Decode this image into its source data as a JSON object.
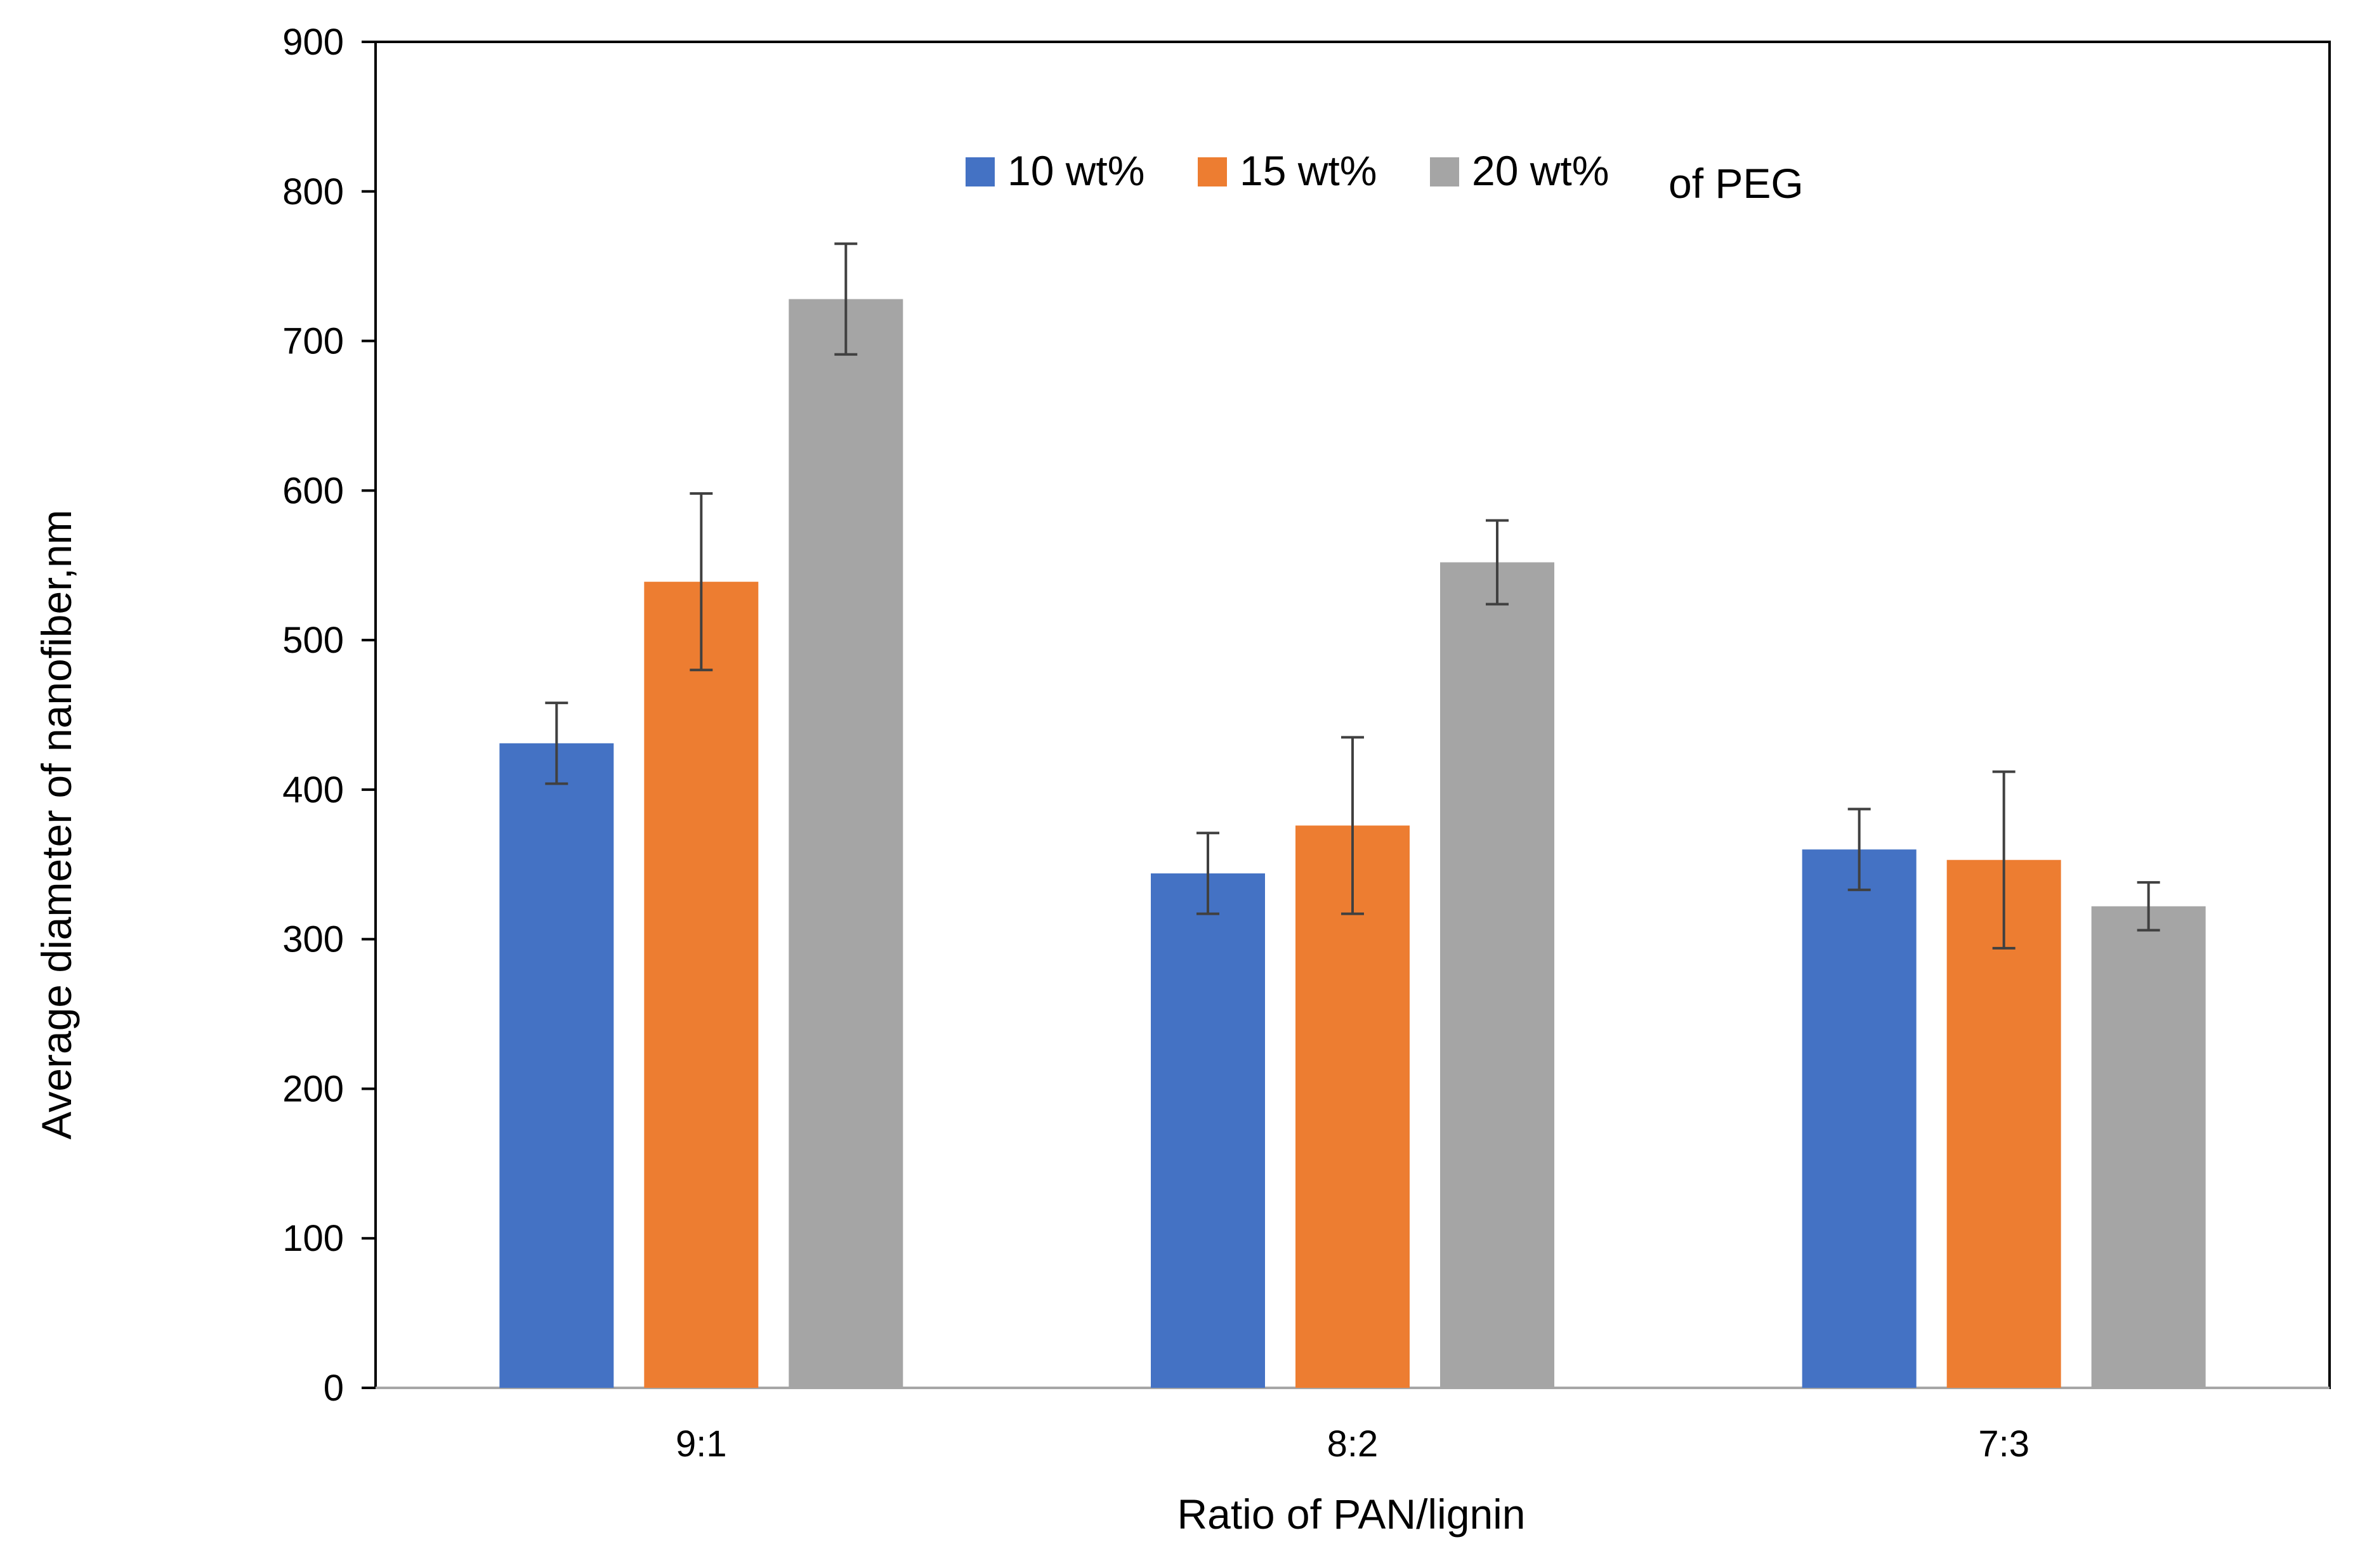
{
  "chart_data": {
    "type": "bar",
    "title": "",
    "xlabel": "Ratio of PAN/lignin",
    "ylabel": "Average diameter of nanofiber,nm",
    "ylim": [
      0,
      900
    ],
    "yticks": [
      0,
      100,
      200,
      300,
      400,
      500,
      600,
      700,
      800,
      900
    ],
    "categories": [
      "9:1",
      "8:2",
      "7:3"
    ],
    "series": [
      {
        "name": "10 wt%",
        "color": "#4472C4",
        "values": [
          431,
          344,
          360
        ],
        "errors": [
          27,
          27,
          27
        ]
      },
      {
        "name": "15 wt%",
        "color": "#ED7D31",
        "values": [
          539,
          376,
          353
        ],
        "errors": [
          59,
          59,
          59
        ]
      },
      {
        "name": "20 wt%",
        "color": "#A5A5A5",
        "values": [
          728,
          552,
          322
        ],
        "errors": [
          37,
          28,
          16
        ]
      }
    ],
    "legend_suffix": "of PEG",
    "legend_position": "top-center",
    "grid": false
  }
}
